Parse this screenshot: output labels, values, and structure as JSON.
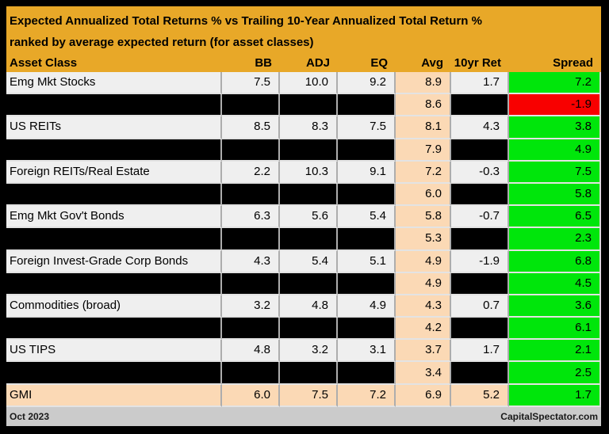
{
  "title": {
    "line1": "Expected Annualized Total Returns % vs Trailing 10-Year Annualized Total Return %",
    "line2": "ranked by average expected return (for asset classes)"
  },
  "footer": {
    "left": "Oct 2023",
    "right": "CapitalSpectator.com"
  },
  "colors": {
    "panel_gold": "#E8A828",
    "row_light": "#EFEFEF",
    "row_black": "#000000",
    "avg_peach": "#FBD9B5",
    "spread_green": "#00E60B",
    "spread_red": "#F80000",
    "footer_gray": "#CBCBCB",
    "border_vertical": "#ADADAD",
    "border_horizontal": "#E3E3E3"
  },
  "chart_data": {
    "type": "table",
    "title": "Expected Annualized Total Returns % vs Trailing 10-Year Annualized Total Return %",
    "subtitle": "ranked by average expected return (for asset classes)",
    "columns": [
      "Asset Class",
      "BB",
      "ADJ",
      "EQ",
      "Avg",
      "10yr Ret",
      "Spread"
    ],
    "rows": [
      {
        "type": "data",
        "cells": [
          "Emg Mkt Stocks",
          "7.5",
          "10.0",
          "9.2",
          "8.9",
          "1.7",
          "7.2"
        ],
        "spread_color": "green"
      },
      {
        "type": "redacted",
        "cells": [
          "",
          "",
          "",
          "",
          "8.6",
          "",
          "-1.9"
        ],
        "spread_color": "red"
      },
      {
        "type": "data",
        "cells": [
          "US REITs",
          "8.5",
          "8.3",
          "7.5",
          "8.1",
          "4.3",
          "3.8"
        ],
        "spread_color": "green"
      },
      {
        "type": "redacted",
        "cells": [
          "",
          "",
          "",
          "",
          "7.9",
          "",
          "4.9"
        ],
        "spread_color": "green"
      },
      {
        "type": "data",
        "cells": [
          "Foreign REITs/Real Estate",
          "2.2",
          "10.3",
          "9.1",
          "7.2",
          "-0.3",
          "7.5"
        ],
        "spread_color": "green"
      },
      {
        "type": "redacted",
        "cells": [
          "",
          "",
          "",
          "",
          "6.0",
          "",
          "5.8"
        ],
        "spread_color": "green"
      },
      {
        "type": "data",
        "cells": [
          "Emg Mkt Gov't Bonds",
          "6.3",
          "5.6",
          "5.4",
          "5.8",
          "-0.7",
          "6.5"
        ],
        "spread_color": "green"
      },
      {
        "type": "redacted",
        "cells": [
          "",
          "",
          "",
          "",
          "5.3",
          "",
          "2.3"
        ],
        "spread_color": "green"
      },
      {
        "type": "data",
        "cells": [
          "Foreign Invest-Grade Corp Bonds",
          "4.3",
          "5.4",
          "5.1",
          "4.9",
          "-1.9",
          "6.8"
        ],
        "spread_color": "green"
      },
      {
        "type": "redacted",
        "cells": [
          "",
          "",
          "",
          "",
          "4.9",
          "",
          "4.5"
        ],
        "spread_color": "green"
      },
      {
        "type": "data",
        "cells": [
          "Commodities (broad)",
          "3.2",
          "4.8",
          "4.9",
          "4.3",
          "0.7",
          "3.6"
        ],
        "spread_color": "green"
      },
      {
        "type": "redacted",
        "cells": [
          "",
          "",
          "",
          "",
          "4.2",
          "",
          "6.1"
        ],
        "spread_color": "green"
      },
      {
        "type": "data",
        "cells": [
          "US TIPS",
          "4.8",
          "3.2",
          "3.1",
          "3.7",
          "1.7",
          "2.1"
        ],
        "spread_color": "green"
      },
      {
        "type": "redacted",
        "cells": [
          "",
          "",
          "",
          "",
          "3.4",
          "",
          "2.5"
        ],
        "spread_color": "green"
      },
      {
        "type": "highlight",
        "cells": [
          "GMI",
          "6.0",
          "7.5",
          "7.2",
          "6.9",
          "5.2",
          "1.7"
        ],
        "spread_color": "green"
      }
    ]
  }
}
